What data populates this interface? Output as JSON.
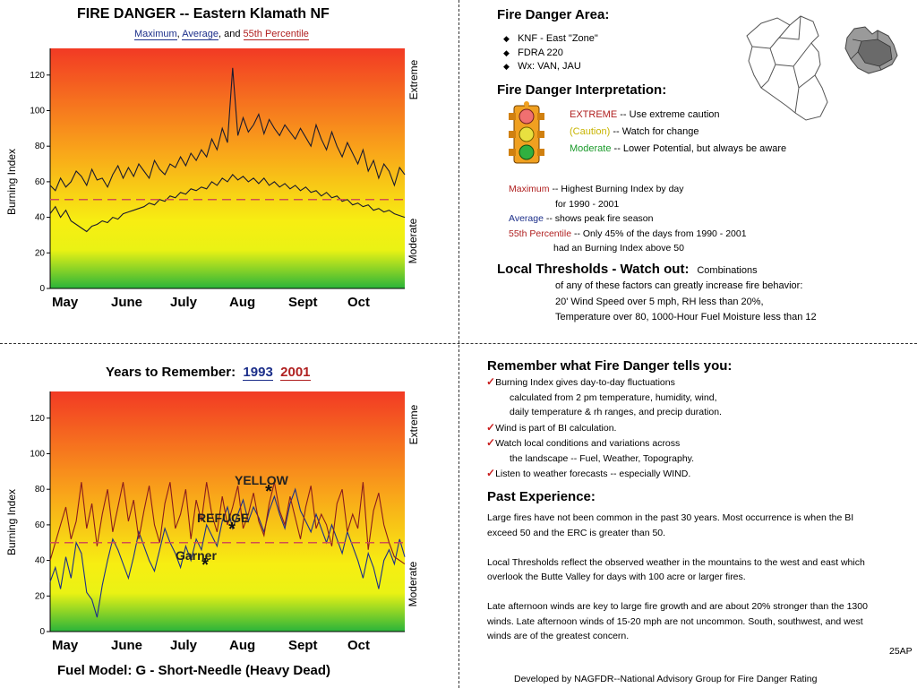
{
  "top_chart": {
    "title": "FIRE DANGER -- Eastern  Klamath NF",
    "subtitle_max": "Maximum",
    "subtitle_comma1": ",",
    "subtitle_avg": "Average",
    "subtitle_and": ", and",
    "subtitle_p55": "55th  Percentile",
    "ylabel": "Burning Index",
    "right_top": "Extreme",
    "right_bottom": "Moderate"
  },
  "bottom_chart": {
    "title_prefix": "Years to Remember:",
    "year1": "1993",
    "year2": "2001",
    "ylabel": "Burning Index",
    "right_top": "Extreme",
    "right_bottom": "Moderate",
    "ann_yellow": "YELLOW",
    "ann_refuge": "REFUGE",
    "ann_garner": "Garner",
    "footer": "Fuel Model: G - Short-Needle (Heavy Dead)"
  },
  "chart_data": [
    {
      "type": "line",
      "title": "FIRE DANGER -- Eastern  Klamath NF",
      "xlabel": "",
      "ylabel": "Burning Index",
      "x_ticks": [
        "May",
        "June",
        "July",
        "Aug",
        "Sept",
        "Oct"
      ],
      "y_ticks": [
        0,
        20,
        40,
        60,
        80,
        100,
        120
      ],
      "ylim": [
        0,
        135
      ],
      "background": "gradient red (top) to yellow to green (bottom)",
      "series": [
        {
          "name": "Maximum",
          "color": "#1a1a2e",
          "values": [
            58,
            55,
            62,
            57,
            60,
            66,
            63,
            58,
            67,
            61,
            62,
            57,
            64,
            69,
            62,
            68,
            63,
            70,
            66,
            62,
            72,
            67,
            64,
            70,
            68,
            74,
            69,
            76,
            72,
            78,
            74,
            84,
            78,
            90,
            82,
            124,
            86,
            96,
            88,
            92,
            98,
            87,
            95,
            90,
            86,
            92,
            88,
            84,
            90,
            85,
            80,
            92,
            84,
            78,
            88,
            80,
            74,
            82,
            76,
            70,
            78,
            66,
            72,
            62,
            70,
            66,
            58,
            68,
            64
          ]
        },
        {
          "name": "Average",
          "color": "#1a1a2e",
          "values": [
            42,
            46,
            40,
            44,
            38,
            36,
            34,
            32,
            35,
            36,
            38,
            37,
            40,
            39,
            42,
            43,
            44,
            45,
            46,
            48,
            47,
            50,
            49,
            52,
            51,
            54,
            53,
            56,
            55,
            57,
            56,
            60,
            58,
            62,
            60,
            64,
            61,
            63,
            60,
            62,
            59,
            62,
            58,
            60,
            57,
            59,
            56,
            58,
            55,
            57,
            54,
            55,
            52,
            54,
            51,
            52,
            49,
            50,
            47,
            48,
            46,
            47,
            44,
            45,
            43,
            44,
            42,
            41,
            40
          ]
        },
        {
          "name": "55th  Percentile",
          "color": "#d05050",
          "values": [
            50,
            50
          ]
        }
      ]
    },
    {
      "type": "line",
      "title": "Years to Remember: 1993 2001",
      "xlabel": "",
      "ylabel": "Burning Index",
      "x_ticks": [
        "May",
        "June",
        "July",
        "Aug",
        "Sept",
        "Oct"
      ],
      "y_ticks": [
        0,
        20,
        40,
        60,
        80,
        100,
        120
      ],
      "ylim": [
        0,
        135
      ],
      "series": [
        {
          "name": "1993",
          "color": "#1c2f8a",
          "values": [
            28,
            36,
            24,
            42,
            30,
            50,
            44,
            22,
            18,
            8,
            26,
            40,
            52,
            46,
            38,
            30,
            42,
            56,
            48,
            40,
            34,
            46,
            58,
            50,
            44,
            36,
            48,
            40,
            52,
            46,
            60,
            54,
            48,
            62,
            70,
            58,
            66,
            74,
            62,
            70,
            64,
            56,
            68,
            76,
            66,
            58,
            72,
            80,
            68,
            62,
            56,
            66,
            58,
            50,
            60,
            52,
            44,
            56,
            48,
            40,
            30,
            44,
            36,
            24,
            40,
            46,
            38,
            52,
            42
          ]
        },
        {
          "name": "2001",
          "color": "#8a1c1c",
          "values": [
            40,
            50,
            60,
            70,
            52,
            62,
            84,
            58,
            72,
            48,
            66,
            80,
            56,
            70,
            84,
            62,
            74,
            52,
            68,
            82,
            60,
            50,
            72,
            84,
            58,
            66,
            80,
            52,
            74,
            62,
            84,
            66,
            56,
            76,
            60,
            70,
            82,
            58,
            66,
            78,
            62,
            54,
            72,
            84,
            68,
            60,
            76,
            64,
            52,
            70,
            82,
            58,
            66,
            60,
            48,
            72,
            80,
            56,
            66,
            58,
            84,
            46,
            68,
            78,
            60,
            50,
            42,
            40,
            38
          ]
        },
        {
          "name": "55th  Percentile",
          "color": "#d05050",
          "values": [
            50,
            50
          ]
        }
      ],
      "annotations": [
        "YELLOW",
        "REFUGE",
        "Garner"
      ]
    }
  ],
  "area": {
    "heading": "Fire Danger Area:",
    "items": [
      "KNF - East \"Zone\"",
      "FDRA 220",
      "Wx: VAN, JAU"
    ]
  },
  "interpretation": {
    "heading": "Fire Danger Interpretation:",
    "extreme": "EXTREME",
    "extreme_desc": "-- Use extreme caution",
    "caution": "(Caution)",
    "caution_desc": "-- Watch for change",
    "moderate": "Moderate",
    "moderate_desc": "-- Lower Potential, but always be aware"
  },
  "legend_desc": {
    "max_label": "Maximum",
    "max_desc": "-- Highest Burning Index by day",
    "max_desc2": "for 1990 - 2001",
    "avg_label": "Average",
    "avg_desc": "-- shows peak fire season",
    "p55_label": "55th Percentile",
    "p55_desc": "-- Only 45% of the days from 1990 - 2001",
    "p55_desc2": "had an Burning Index above 50"
  },
  "thresholds": {
    "heading": "Local Thresholds - Watch out:",
    "lead": "Combinations",
    "l1": "of any of these factors can greatly increase fire behavior:",
    "l2": "20' Wind Speed over 5 mph, RH  less than 20%,",
    "l3": "Temperature over 80, 1000-Hour Fuel Moisture less than 12"
  },
  "remember": {
    "heading": "Remember what Fire Danger tells you:",
    "b1": "Burning Index gives day-to-day fluctuations",
    "b1a": "calculated from 2 pm temperature, humidity, wind,",
    "b1b": "daily temperature & rh ranges, and precip duration.",
    "b2": "Wind is part of BI calculation.",
    "b3": "Watch local conditions and variations across",
    "b3a": "the landscape -- Fuel, Weather, Topography.",
    "b4": "Listen to weather forecasts -- especially WIND."
  },
  "past": {
    "heading": "Past Experience:",
    "p1a": "Large fires have not been common in the past 30 years.  Most occurrence is when the BI",
    "p1b": "exceed 50 and the ERC is greater than 50.",
    "p2a": "Local Thresholds reflect the observed weather in the mountains to the west and east which",
    "p2b": " overlook the  Butte Valley for days with 100 acre or larger fires.",
    "p3a": "Late afternoon winds are key to large fire growth and are about 20% stronger than the 1300",
    "p3b": "winds.  Late afternoon winds of 15-20 mph are not uncommon.  South, southwest, and west",
    "p3c": "winds are of the greatest concern.",
    "date": "25AP"
  },
  "footer": "Developed by NAGFDR--National Advisory Group for Fire Danger Rating"
}
